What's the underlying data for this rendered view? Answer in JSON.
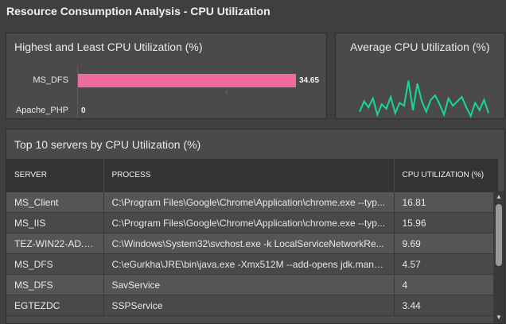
{
  "page": {
    "title": "Resource Consumption Analysis - CPU Utilization"
  },
  "highest_least": {
    "title": "Highest and Least CPU Utilization (%)",
    "bar_color": "#f06b9b",
    "chart_data": {
      "type": "bar",
      "orientation": "horizontal",
      "categories": [
        "MS_DFS",
        "Apache_PHP"
      ],
      "values": [
        34.65,
        0
      ],
      "value_labels": [
        "34.65",
        "0"
      ],
      "xlim": [
        0,
        38
      ]
    }
  },
  "average": {
    "title": "Average CPU Utilization (%)",
    "line_color": "#19d79a",
    "chart_data": {
      "type": "line",
      "values": [
        5,
        12,
        8,
        14,
        3,
        10,
        7,
        15,
        4,
        11,
        9,
        26,
        6,
        24,
        12,
        5,
        13,
        16,
        10,
        3,
        14,
        9,
        12,
        15,
        8,
        2,
        11,
        6,
        13,
        4
      ],
      "ylim": [
        0,
        30
      ]
    }
  },
  "top10": {
    "title": "Top 10 servers by CPU Utilization (%)",
    "columns": [
      "SERVER",
      "PROCESS",
      "CPU UTILIZATION (%)"
    ],
    "rows": [
      {
        "server": "MS_Client",
        "process": "C:\\Program Files\\Google\\Chrome\\Application\\chrome.exe --typ...",
        "cpu": "16.81"
      },
      {
        "server": "MS_IIS",
        "process": "C:\\Program Files\\Google\\Chrome\\Application\\chrome.exe --typ...",
        "cpu": "15.96"
      },
      {
        "server": "TEZ-WIN22-AD.T...",
        "process": "C:\\Windows\\System32\\svchost.exe -k LocalServiceNetworkRe...",
        "cpu": "9.69"
      },
      {
        "server": "MS_DFS",
        "process": "C:\\eGurkha\\JRE\\bin\\java.exe -Xmx512M --add-opens jdk.mana...",
        "cpu": "4.57"
      },
      {
        "server": "MS_DFS",
        "process": "SavService",
        "cpu": "4"
      },
      {
        "server": "EGTEZDC",
        "process": "SSPService",
        "cpu": "3.44"
      }
    ],
    "scroll": {
      "up_icon": "caret-up-icon",
      "down_icon": "caret-down-icon"
    }
  }
}
